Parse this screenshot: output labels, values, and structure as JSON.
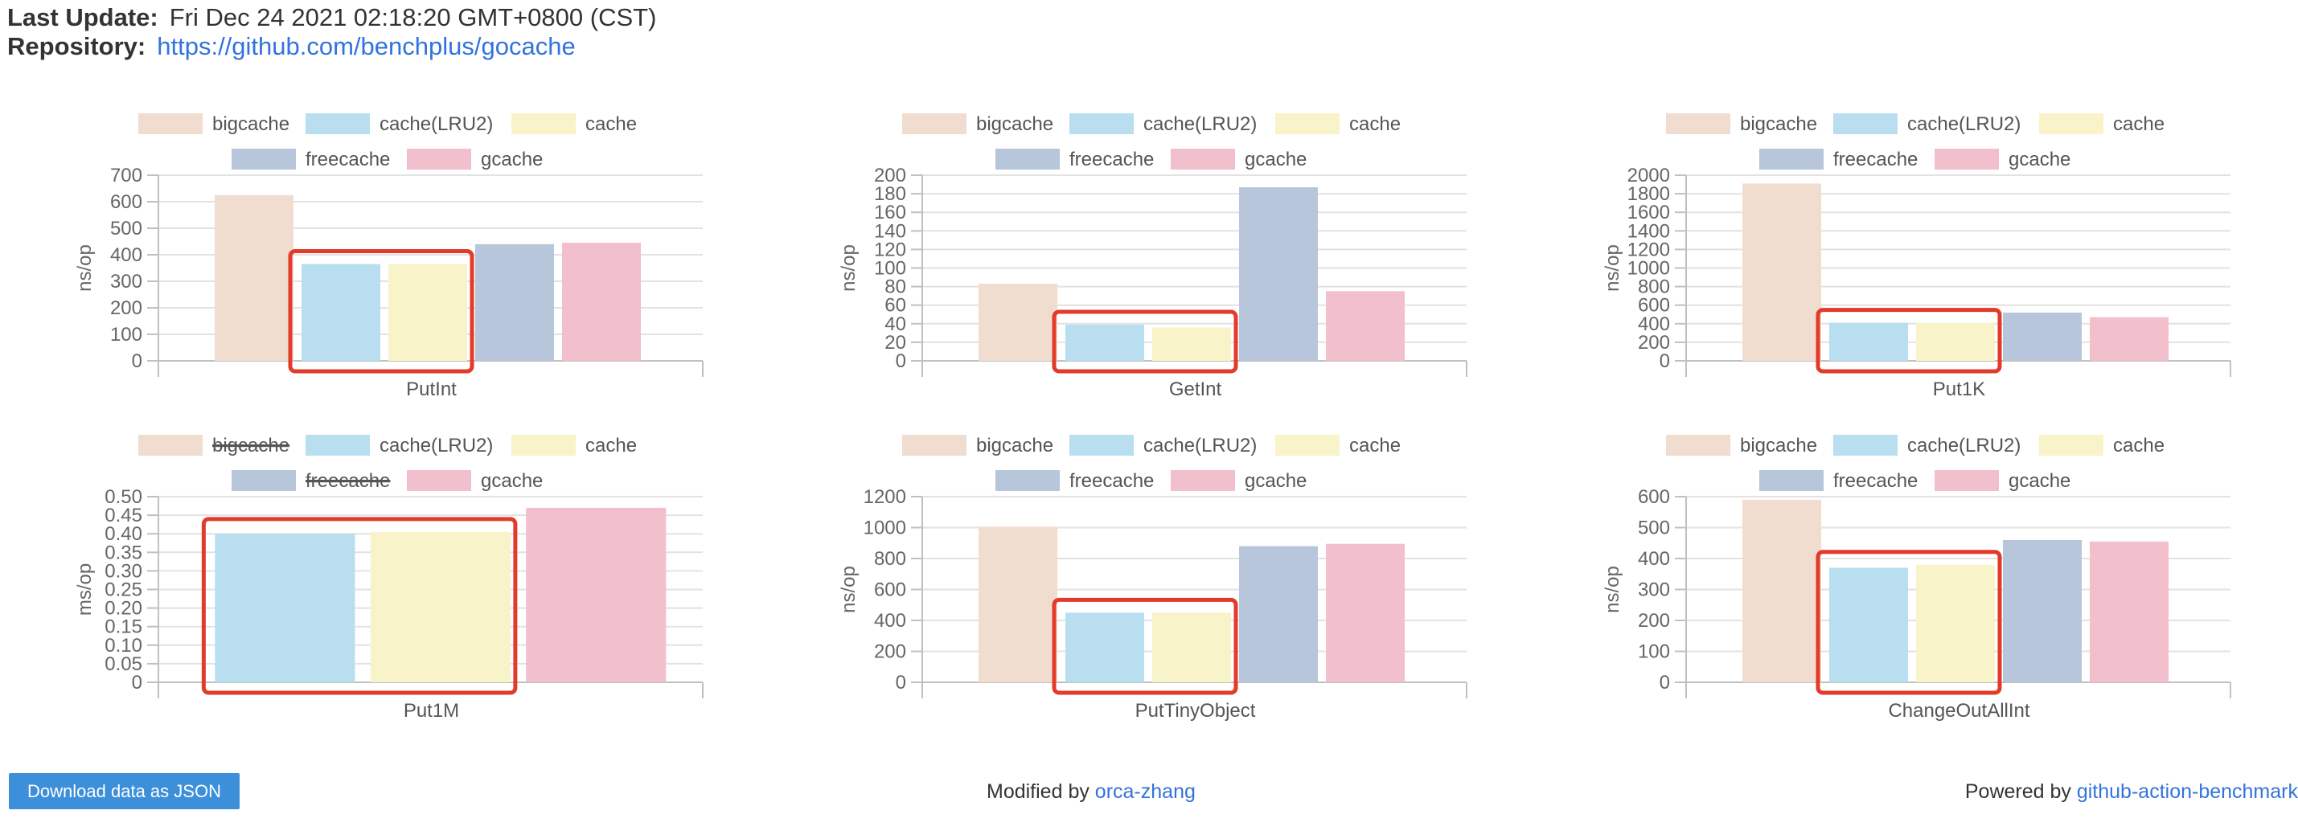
{
  "header": {
    "last_update_label": "Last Update:",
    "last_update_value": "Fri Dec 24 2021 02:18:20 GMT+0800 (CST)",
    "repository_label": "Repository:",
    "repository_url": "https://github.com/benchplus/gocache"
  },
  "colors": {
    "bigcache": "#f0ddd0",
    "cache(LRU2)": "#b9def0",
    "cache": "#f8f3c8",
    "freecache": "#b7c6da",
    "gcache": "#f2bfcc",
    "highlight": "#e23b2a",
    "grid": "#e2e2e2",
    "axis": "#c0c0c0"
  },
  "legend_labels": [
    "bigcache",
    "cache(LRU2)",
    "cache",
    "freecache",
    "gcache"
  ],
  "chart_data": [
    {
      "type": "bar",
      "title": "",
      "xlabel": "PutInt",
      "ylabel": "ns/op",
      "ylim": [
        0,
        700
      ],
      "yticks": [
        "0",
        "100",
        "200",
        "300",
        "400",
        "500",
        "600",
        "700"
      ],
      "legend_position": "top",
      "series": [
        {
          "name": "bigcache",
          "value": 625
        },
        {
          "name": "cache(LRU2)",
          "value": 365
        },
        {
          "name": "cache",
          "value": 365
        },
        {
          "name": "freecache",
          "value": 440
        },
        {
          "name": "gcache",
          "value": 445
        }
      ],
      "hidden_series": [],
      "highlighted": [
        "cache(LRU2)",
        "cache"
      ]
    },
    {
      "type": "bar",
      "title": "",
      "xlabel": "GetInt",
      "ylabel": "ns/op",
      "ylim": [
        0,
        200
      ],
      "yticks": [
        "0",
        "20",
        "40",
        "60",
        "80",
        "100",
        "120",
        "140",
        "160",
        "180",
        "200"
      ],
      "legend_position": "top",
      "series": [
        {
          "name": "bigcache",
          "value": 83
        },
        {
          "name": "cache(LRU2)",
          "value": 39
        },
        {
          "name": "cache",
          "value": 36
        },
        {
          "name": "freecache",
          "value": 187
        },
        {
          "name": "gcache",
          "value": 75
        }
      ],
      "hidden_series": [],
      "highlighted": [
        "cache(LRU2)",
        "cache"
      ]
    },
    {
      "type": "bar",
      "title": "",
      "xlabel": "Put1K",
      "ylabel": "ns/op",
      "ylim": [
        0,
        2000
      ],
      "yticks": [
        "0",
        "200",
        "400",
        "600",
        "800",
        "1000",
        "1200",
        "1400",
        "1600",
        "1800",
        "2000"
      ],
      "legend_position": "top",
      "series": [
        {
          "name": "bigcache",
          "value": 1910
        },
        {
          "name": "cache(LRU2)",
          "value": 410
        },
        {
          "name": "cache",
          "value": 410
        },
        {
          "name": "freecache",
          "value": 520
        },
        {
          "name": "gcache",
          "value": 470
        }
      ],
      "hidden_series": [],
      "highlighted": [
        "cache(LRU2)",
        "cache"
      ]
    },
    {
      "type": "bar",
      "title": "",
      "xlabel": "Put1M",
      "ylabel": "ms/op",
      "ylim": [
        0,
        0.5
      ],
      "yticks": [
        "0",
        "0.05",
        "0.10",
        "0.15",
        "0.20",
        "0.25",
        "0.30",
        "0.35",
        "0.40",
        "0.45",
        "0.50"
      ],
      "legend_position": "top",
      "series": [
        {
          "name": "bigcache",
          "value": null
        },
        {
          "name": "cache(LRU2)",
          "value": 0.4
        },
        {
          "name": "cache",
          "value": 0.405
        },
        {
          "name": "freecache",
          "value": null
        },
        {
          "name": "gcache",
          "value": 0.47
        }
      ],
      "hidden_series": [
        "bigcache",
        "freecache"
      ],
      "highlighted": [
        "cache(LRU2)",
        "cache"
      ]
    },
    {
      "type": "bar",
      "title": "",
      "xlabel": "PutTinyObject",
      "ylabel": "ns/op",
      "ylim": [
        0,
        1200
      ],
      "yticks": [
        "0",
        "200",
        "400",
        "600",
        "800",
        "1000",
        "1200"
      ],
      "legend_position": "top",
      "series": [
        {
          "name": "bigcache",
          "value": 1005
        },
        {
          "name": "cache(LRU2)",
          "value": 450
        },
        {
          "name": "cache",
          "value": 450
        },
        {
          "name": "freecache",
          "value": 880
        },
        {
          "name": "gcache",
          "value": 895
        }
      ],
      "hidden_series": [],
      "highlighted": [
        "cache(LRU2)",
        "cache"
      ]
    },
    {
      "type": "bar",
      "title": "",
      "xlabel": "ChangeOutAllInt",
      "ylabel": "ns/op",
      "ylim": [
        0,
        600
      ],
      "yticks": [
        "0",
        "100",
        "200",
        "300",
        "400",
        "500",
        "600"
      ],
      "legend_position": "top",
      "series": [
        {
          "name": "bigcache",
          "value": 590
        },
        {
          "name": "cache(LRU2)",
          "value": 370
        },
        {
          "name": "cache",
          "value": 380
        },
        {
          "name": "freecache",
          "value": 460
        },
        {
          "name": "gcache",
          "value": 455
        }
      ],
      "hidden_series": [],
      "highlighted": [
        "cache(LRU2)",
        "cache"
      ]
    }
  ],
  "download_button": "Download data as JSON",
  "footer": {
    "modified_prefix": "Modified by ",
    "modified_link": "orca-zhang",
    "powered_prefix": "Powered by ",
    "powered_link": "github-action-benchmark"
  }
}
